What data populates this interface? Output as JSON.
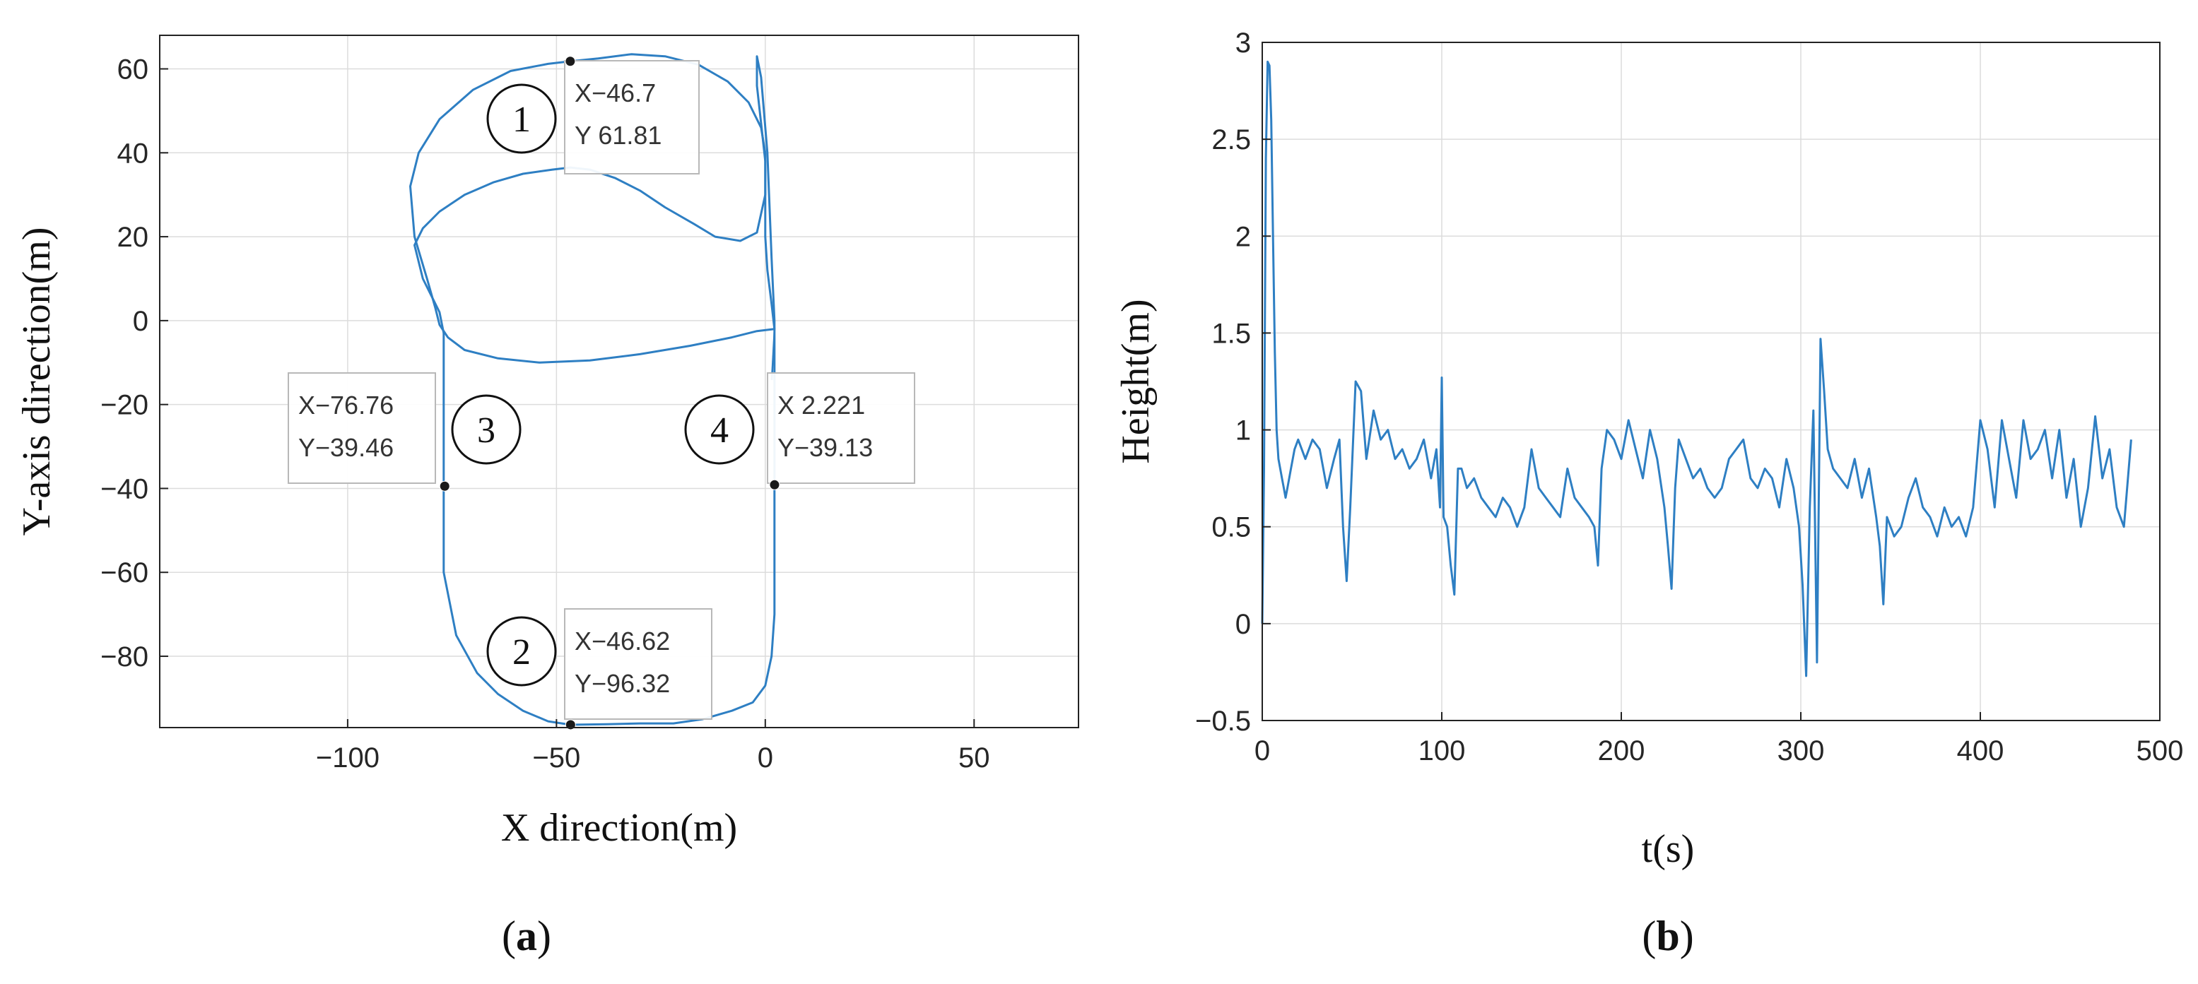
{
  "chart_data": [
    {
      "panel": "(a)",
      "type": "line",
      "xlabel": "X direction(m)",
      "ylabel": "Y-axis direction(m)",
      "xlim": [
        -145,
        75
      ],
      "ylim": [
        -97,
        68
      ],
      "xticks": [
        -100,
        -50,
        0,
        50
      ],
      "yticks": [
        60,
        40,
        20,
        0,
        -20,
        -40,
        -60,
        -80
      ],
      "xtick_labels": [
        "−100",
        "−50",
        "0",
        "50"
      ],
      "ytick_labels": [
        "60",
        "40",
        "20",
        "0",
        "−20",
        "−40",
        "−60",
        "−80"
      ],
      "grid": true,
      "line_color": "#2e7fc3",
      "series": [
        {
          "x": [
            -77,
            -77,
            -77,
            -77,
            -77,
            -78,
            -80,
            -82,
            -83,
            -84,
            -82,
            -78,
            -72,
            -65,
            -58,
            -51,
            -46.7,
            -42,
            -36,
            -30,
            -24,
            -17,
            -12,
            -6,
            -2,
            0,
            0,
            -1,
            -2,
            -2,
            -1,
            0.5,
            1.5,
            2.2,
            2.2,
            2.2,
            2.2,
            2.2,
            1.5,
            0,
            -3,
            -8,
            -15,
            -22,
            -30,
            -38,
            -46.62,
            -52,
            -58,
            -64,
            -69,
            -74,
            -77,
            -77
          ],
          "y": [
            -39.46,
            -25,
            -15,
            -8,
            -3,
            2,
            6,
            10,
            14,
            18,
            22,
            26,
            30,
            33,
            35,
            36,
            36.5,
            36,
            34,
            31,
            27,
            23,
            20,
            19,
            21,
            30,
            38,
            47,
            56,
            63,
            58,
            40,
            15,
            0,
            -15,
            -39.13,
            -55,
            -70,
            -80,
            -87,
            -91,
            -93,
            -95,
            -96,
            -96,
            -96.2,
            -96.32,
            -95.5,
            -93,
            -89,
            -84,
            -75,
            -60,
            -39.46
          ]
        },
        {
          "x": [
            2.2,
            -2,
            -8,
            -18,
            -30,
            -42,
            -54,
            -64,
            -72,
            -76,
            -78,
            -79,
            -81,
            -84,
            -85,
            -83,
            -78,
            -70,
            -61,
            -52,
            -46.7,
            -40,
            -32,
            -24,
            -16,
            -9,
            -4,
            -1,
            0,
            0,
            0,
            0.5,
            1.5,
            2.2
          ],
          "y": [
            -2,
            -2.5,
            -4,
            -6,
            -8,
            -9.5,
            -10,
            -9,
            -7,
            -4,
            -1,
            3,
            10,
            20,
            32,
            40,
            48,
            55,
            59.5,
            61.2,
            61.81,
            62.5,
            63.5,
            63,
            61,
            57,
            52,
            46,
            40,
            30,
            20,
            12,
            4,
            -2
          ]
        }
      ],
      "annotations": [
        {
          "marker": "1",
          "x": -46.7,
          "y": 61.81,
          "lines": [
            "X−46.7",
            "Y 61.81"
          ]
        },
        {
          "marker": "2",
          "x": -46.62,
          "y": -96.32,
          "lines": [
            "X−46.62",
            "Y−96.32"
          ]
        },
        {
          "marker": "3",
          "x": -76.76,
          "y": -39.46,
          "lines": [
            "X−76.76",
            "Y−39.46"
          ]
        },
        {
          "marker": "4",
          "x": 2.221,
          "y": -39.13,
          "lines": [
            "X 2.221",
            "Y−39.13"
          ]
        }
      ]
    },
    {
      "panel": "(b)",
      "type": "line",
      "xlabel": "t(s)",
      "ylabel": "Height(m)",
      "xlim": [
        0,
        500
      ],
      "ylim": [
        -0.5,
        3
      ],
      "xticks": [
        0,
        100,
        200,
        300,
        400,
        500
      ],
      "yticks": [
        3,
        2.5,
        2,
        1.5,
        1,
        0.5,
        0,
        -0.5
      ],
      "xtick_labels": [
        "0",
        "100",
        "200",
        "300",
        "400",
        "500"
      ],
      "ytick_labels": [
        "3",
        "2.5",
        "2",
        "1.5",
        "1",
        "0.5",
        "0",
        "−0.5"
      ],
      "grid": true,
      "line_color": "#2e7fc3",
      "series": [
        {
          "x": [
            0,
            1,
            2,
            3,
            4,
            5,
            6,
            7,
            8,
            9,
            10,
            11,
            12,
            13,
            14,
            16,
            18,
            20,
            24,
            28,
            32,
            36,
            40,
            43,
            45,
            47,
            49,
            52,
            55,
            58,
            62,
            66,
            70,
            74,
            78,
            82,
            86,
            90,
            94,
            97,
            99,
            100,
            101,
            103,
            105,
            107,
            109,
            111,
            114,
            118,
            122,
            126,
            130,
            134,
            138,
            142,
            146,
            150,
            154,
            158,
            162,
            166,
            170,
            174,
            178,
            182,
            185,
            187,
            189,
            192,
            196,
            200,
            204,
            208,
            212,
            216,
            220,
            224,
            226,
            228,
            230,
            232,
            236,
            240,
            244,
            248,
            252,
            256,
            260,
            264,
            268,
            272,
            276,
            280,
            284,
            288,
            292,
            296,
            299,
            301,
            303,
            305,
            307,
            309,
            311,
            313,
            315,
            318,
            322,
            326,
            330,
            334,
            338,
            342,
            344,
            346,
            348,
            352,
            356,
            360,
            364,
            368,
            372,
            376,
            380,
            384,
            388,
            392,
            396,
            400,
            404,
            408,
            412,
            416,
            420,
            424,
            428,
            432,
            436,
            440,
            444,
            448,
            452,
            456,
            460,
            464,
            468,
            472,
            476,
            480,
            484
          ],
          "y": [
            0,
            0.8,
            2.4,
            2.9,
            2.88,
            2.6,
            2.0,
            1.4,
            1.0,
            0.85,
            0.8,
            0.75,
            0.7,
            0.65,
            0.7,
            0.8,
            0.9,
            0.95,
            0.85,
            0.95,
            0.9,
            0.7,
            0.85,
            0.95,
            0.5,
            0.22,
            0.6,
            1.25,
            1.2,
            0.85,
            1.1,
            0.95,
            1.0,
            0.85,
            0.9,
            0.8,
            0.85,
            0.95,
            0.75,
            0.9,
            0.6,
            1.27,
            0.55,
            0.5,
            0.3,
            0.15,
            0.8,
            0.8,
            0.7,
            0.75,
            0.65,
            0.6,
            0.55,
            0.65,
            0.6,
            0.5,
            0.6,
            0.9,
            0.7,
            0.65,
            0.6,
            0.55,
            0.8,
            0.65,
            0.6,
            0.55,
            0.5,
            0.3,
            0.8,
            1.0,
            0.95,
            0.85,
            1.05,
            0.9,
            0.75,
            1.0,
            0.85,
            0.6,
            0.4,
            0.18,
            0.7,
            0.95,
            0.85,
            0.75,
            0.8,
            0.7,
            0.65,
            0.7,
            0.85,
            0.9,
            0.95,
            0.75,
            0.7,
            0.8,
            0.75,
            0.6,
            0.85,
            0.7,
            0.5,
            0.2,
            -0.27,
            0.6,
            1.1,
            -0.2,
            1.47,
            1.2,
            0.9,
            0.8,
            0.75,
            0.7,
            0.85,
            0.65,
            0.8,
            0.55,
            0.4,
            0.1,
            0.55,
            0.45,
            0.5,
            0.65,
            0.75,
            0.6,
            0.55,
            0.45,
            0.6,
            0.5,
            0.55,
            0.45,
            0.6,
            1.05,
            0.9,
            0.6,
            1.05,
            0.85,
            0.65,
            1.05,
            0.85,
            0.9,
            1.0,
            0.75,
            1.0,
            0.65,
            0.85,
            0.5,
            0.7,
            1.07,
            0.75,
            0.9,
            0.6,
            0.5,
            0.95
          ]
        }
      ]
    }
  ]
}
